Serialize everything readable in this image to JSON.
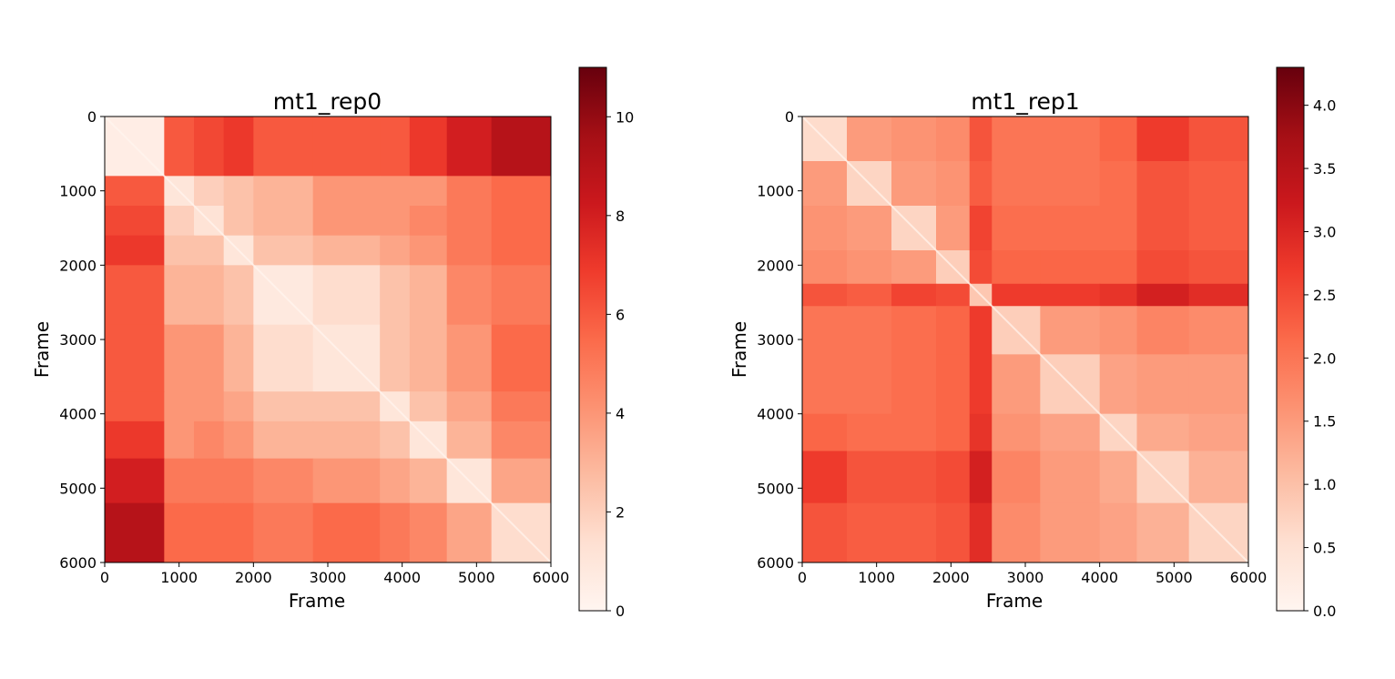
{
  "chart_data": [
    {
      "type": "heatmap",
      "title": "mt1_rep0",
      "xlabel": "Frame",
      "ylabel": "Frame",
      "colormap": "Reds",
      "x_ticks": [
        "0",
        "1000",
        "2000",
        "3000",
        "4000",
        "5000",
        "6000"
      ],
      "y_ticks": [
        "0",
        "1000",
        "2000",
        "3000",
        "4000",
        "5000",
        "6000"
      ],
      "xlim": [
        0,
        6000
      ],
      "ylim": [
        0,
        6000
      ],
      "y_inverted": true,
      "colorbar": {
        "vmin": 0,
        "vmax": 11,
        "ticks": [
          0,
          2,
          4,
          6,
          8,
          10
        ],
        "tick_labels": [
          "0",
          "2",
          "4",
          "6",
          "8",
          "10"
        ]
      },
      "block_boundaries": [
        0,
        800,
        1200,
        1600,
        2000,
        2800,
        3700,
        4100,
        4600,
        5200,
        6000
      ],
      "block_matrix": [
        [
          0.5,
          6.0,
          6.5,
          7.0,
          6.0,
          6.0,
          6.0,
          7.0,
          8.0,
          9.0
        ],
        [
          6.0,
          1.0,
          2.0,
          2.5,
          3.0,
          4.0,
          4.0,
          4.0,
          5.0,
          5.5
        ],
        [
          6.5,
          2.0,
          1.2,
          2.5,
          3.0,
          4.0,
          4.0,
          4.5,
          5.0,
          5.5
        ],
        [
          7.0,
          2.5,
          2.5,
          1.0,
          2.5,
          3.0,
          3.5,
          4.0,
          5.0,
          5.5
        ],
        [
          6.0,
          3.0,
          3.0,
          2.5,
          0.8,
          1.5,
          2.5,
          3.0,
          4.5,
          5.0
        ],
        [
          6.0,
          4.0,
          4.0,
          3.0,
          1.5,
          1.0,
          2.5,
          3.0,
          4.0,
          5.5
        ],
        [
          6.0,
          4.0,
          4.0,
          3.5,
          2.5,
          2.5,
          1.0,
          2.5,
          3.5,
          5.0
        ],
        [
          7.0,
          4.0,
          4.5,
          4.0,
          3.0,
          3.0,
          2.5,
          1.0,
          3.0,
          4.5
        ],
        [
          8.0,
          5.0,
          5.0,
          5.0,
          4.5,
          4.0,
          3.5,
          3.0,
          1.0,
          3.5
        ],
        [
          9.0,
          5.5,
          5.5,
          5.5,
          5.0,
          5.5,
          5.0,
          4.5,
          3.5,
          1.5
        ]
      ]
    },
    {
      "type": "heatmap",
      "title": "mt1_rep1",
      "xlabel": "Frame",
      "ylabel": "Frame",
      "colormap": "Reds",
      "x_ticks": [
        "0",
        "1000",
        "2000",
        "3000",
        "4000",
        "5000",
        "6000"
      ],
      "y_ticks": [
        "0",
        "1000",
        "2000",
        "3000",
        "4000",
        "5000",
        "6000"
      ],
      "xlim": [
        0,
        6000
      ],
      "ylim": [
        0,
        6000
      ],
      "y_inverted": true,
      "colorbar": {
        "vmin": 0,
        "vmax": 4.3,
        "ticks": [
          0,
          0.5,
          1,
          1.5,
          2,
          2.5,
          3,
          3.5,
          4
        ],
        "tick_labels": [
          "0.0",
          "0.5",
          "1.0",
          "1.5",
          "2.0",
          "2.5",
          "3.0",
          "3.5",
          "4.0"
        ]
      },
      "block_boundaries": [
        0,
        600,
        1200,
        1800,
        2250,
        2550,
        3200,
        4000,
        4500,
        5200,
        6000
      ],
      "block_matrix": [
        [
          0.6,
          1.5,
          1.6,
          1.7,
          2.4,
          2.0,
          2.0,
          2.2,
          2.7,
          2.4
        ],
        [
          1.5,
          0.7,
          1.5,
          1.6,
          2.3,
          2.0,
          2.0,
          2.1,
          2.4,
          2.3
        ],
        [
          1.6,
          1.5,
          0.7,
          1.5,
          2.6,
          2.1,
          2.1,
          2.1,
          2.4,
          2.3
        ],
        [
          1.7,
          1.6,
          1.5,
          0.8,
          2.5,
          2.2,
          2.2,
          2.2,
          2.5,
          2.4
        ],
        [
          2.4,
          2.3,
          2.6,
          2.5,
          0.9,
          2.7,
          2.7,
          2.8,
          3.1,
          2.9
        ],
        [
          2.0,
          2.0,
          2.1,
          2.2,
          2.7,
          0.8,
          1.5,
          1.6,
          1.8,
          1.7
        ],
        [
          2.0,
          2.0,
          2.1,
          2.2,
          2.7,
          1.5,
          0.8,
          1.4,
          1.5,
          1.5
        ],
        [
          2.2,
          2.1,
          2.1,
          2.2,
          2.8,
          1.6,
          1.4,
          0.7,
          1.3,
          1.4
        ],
        [
          2.7,
          2.4,
          2.4,
          2.5,
          3.1,
          1.8,
          1.5,
          1.3,
          0.7,
          1.2
        ],
        [
          2.4,
          2.3,
          2.3,
          2.4,
          2.9,
          1.7,
          1.5,
          1.4,
          1.2,
          0.7
        ]
      ]
    }
  ]
}
